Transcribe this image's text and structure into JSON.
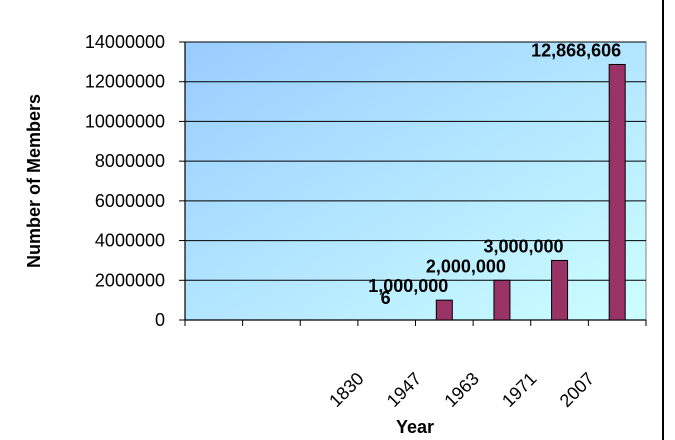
{
  "chart_data": {
    "type": "bar",
    "title": "",
    "xlabel": "Year",
    "ylabel": "Number of Members",
    "category_labels": [
      "1830",
      "1947",
      "1963",
      "1971",
      "2007"
    ],
    "series": [
      {
        "values": [
          6,
          1000000,
          2000000,
          3000000,
          12868606
        ],
        "data_labels": [
          "6",
          "1,000,000",
          "2,000,000",
          "3,000,000",
          "12,868,606"
        ]
      }
    ],
    "ylim": [
      0,
      14000000
    ],
    "yticks": [
      "0",
      "2000000",
      "4000000",
      "6000000",
      "8000000",
      "10000000",
      "12000000",
      "14000000"
    ],
    "ytick_values": [
      0,
      2000000,
      4000000,
      6000000,
      8000000,
      10000000,
      12000000,
      14000000
    ],
    "grid": true,
    "legend": "none",
    "colors": {
      "bar_fill": "#993366",
      "bar_stroke": "#000000",
      "plot_gradient_start": "#99ccff",
      "plot_gradient_end": "#ccffff",
      "gridline": "#000000"
    }
  }
}
